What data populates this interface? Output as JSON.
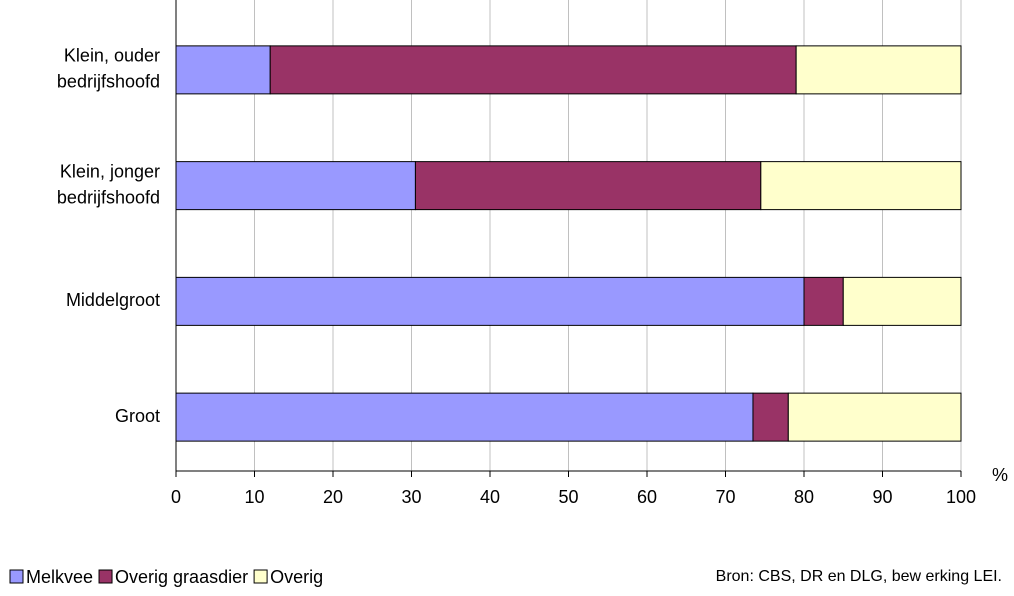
{
  "chart_data": {
    "type": "stacked-barh",
    "categories": [
      [
        "Klein, ouder",
        "bedrijfshoofd"
      ],
      [
        "Klein, jonger",
        "bedrijfshoofd"
      ],
      [
        "Middelgroot"
      ],
      [
        "Groot"
      ]
    ],
    "series": [
      {
        "name": "Melkvee",
        "color": "#9999ff",
        "values": [
          12,
          30.5,
          80,
          73.5
        ]
      },
      {
        "name": "Overig graasdier",
        "color": "#993366",
        "values": [
          67,
          44,
          5,
          4.5
        ]
      },
      {
        "name": "Overig",
        "color": "#ffffcc",
        "values": [
          21,
          25.5,
          15,
          22
        ]
      }
    ],
    "xlim": [
      0,
      100
    ],
    "xticks": [
      0,
      10,
      20,
      30,
      40,
      50,
      60,
      70,
      80,
      90,
      100
    ],
    "x_label": "%",
    "grid": true,
    "source": "Bron: CBS, DR en DLG, bew erking LEI."
  }
}
